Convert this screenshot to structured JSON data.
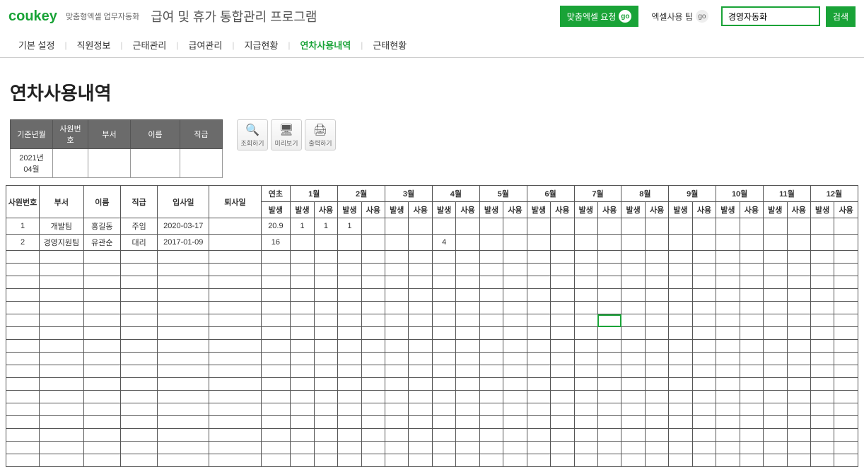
{
  "header": {
    "logo": "coukey",
    "logo_sub": "맞춤형엑셀 업무자동화",
    "app_title": "급여 및 휴가 통합관리 프로그램",
    "btn_request": "맞춤엑셀 요청",
    "btn_tips": "엑셀사용 팁",
    "go": "go",
    "search_value": "경영자동화",
    "btn_search": "검색"
  },
  "nav": {
    "tabs": [
      "기본 설정",
      "직원정보",
      "근태관리",
      "급여관리",
      "지급현황",
      "연차사용내역",
      "근태현황"
    ],
    "active_index": 5
  },
  "page_title": "연차사용내역",
  "filter": {
    "headers": [
      "기준년월",
      "사원번호",
      "부서",
      "이름",
      "직급"
    ],
    "values": [
      "2021년 04월",
      "",
      "",
      "",
      ""
    ]
  },
  "actions": {
    "query": "조회하기",
    "preview": "미리보기",
    "print": "출력하기"
  },
  "table": {
    "fixed_headers": [
      "사원번호",
      "부서",
      "이름",
      "직급",
      "입사일",
      "퇴사일"
    ],
    "annual_header": "연초",
    "annual_sub": "발생",
    "months": [
      "1월",
      "2월",
      "3월",
      "4월",
      "5월",
      "6월",
      "7월",
      "8월",
      "9월",
      "10월",
      "11월",
      "12월"
    ],
    "sub_occur": "발생",
    "sub_use": "사용",
    "rows": [
      {
        "emp": "1",
        "dept": "개발팀",
        "name": "홍길동",
        "rank": "주임",
        "hire": "2020-03-17",
        "leave": "",
        "annual": "20.9",
        "months": [
          [
            "1",
            "1"
          ],
          [
            "1",
            ""
          ],
          [
            "",
            ""
          ],
          [
            "",
            ""
          ],
          [
            "",
            ""
          ],
          [
            "",
            ""
          ],
          [
            "",
            ""
          ],
          [
            "",
            ""
          ],
          [
            "",
            ""
          ],
          [
            "",
            ""
          ],
          [
            "",
            ""
          ],
          [
            "",
            ""
          ]
        ]
      },
      {
        "emp": "2",
        "dept": "경영지원팀",
        "name": "유관순",
        "rank": "대리",
        "hire": "2017-01-09",
        "leave": "",
        "annual": "16",
        "months": [
          [
            "",
            ""
          ],
          [
            "",
            ""
          ],
          [
            "",
            ""
          ],
          [
            "4",
            ""
          ],
          [
            "",
            ""
          ],
          [
            "",
            ""
          ],
          [
            "",
            ""
          ],
          [
            "",
            ""
          ],
          [
            "",
            ""
          ],
          [
            "",
            ""
          ],
          [
            "",
            ""
          ],
          [
            "",
            ""
          ]
        ]
      }
    ],
    "empty_rows": 17,
    "selected_cell": {
      "row_index": 7,
      "col_index": 20
    }
  },
  "colors": {
    "brand": "#19a337",
    "header_gray": "#6b6b6b",
    "border": "#555555"
  }
}
